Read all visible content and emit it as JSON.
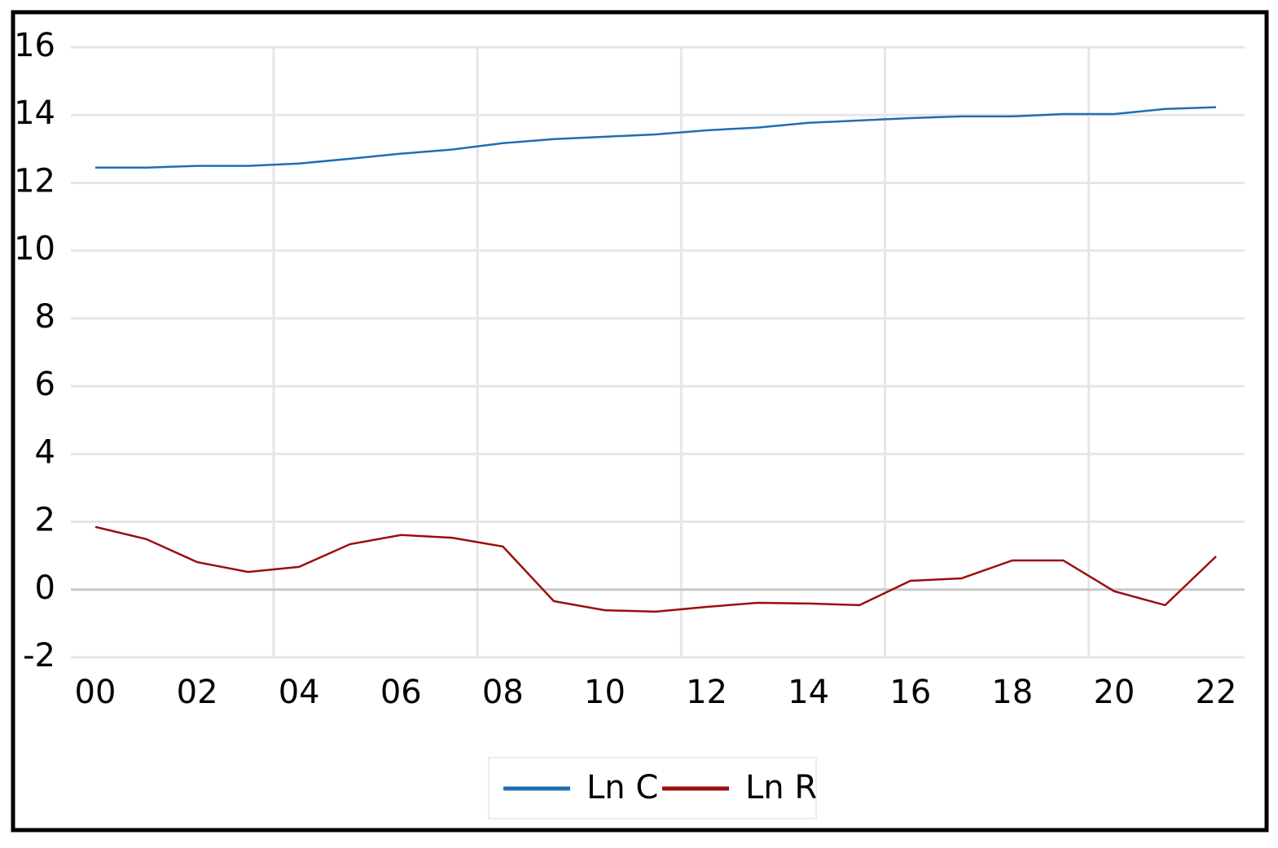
{
  "chart_data": {
    "type": "line",
    "categories": [
      "00",
      null,
      "02",
      null,
      "04",
      null,
      "06",
      null,
      "08",
      null,
      "10",
      null,
      "12",
      null,
      "14",
      null,
      "16",
      null,
      "18",
      null,
      "20",
      null,
      "22"
    ],
    "series": [
      {
        "name": "Ln C",
        "color": "#1f6eb5",
        "values": [
          12.45,
          12.45,
          12.5,
          12.5,
          12.57,
          12.71,
          12.86,
          12.98,
          13.17,
          13.29,
          13.36,
          13.43,
          13.55,
          13.63,
          13.77,
          13.84,
          13.91,
          13.96,
          13.96,
          14.03,
          14.03,
          14.18,
          14.23
        ]
      },
      {
        "name": "Ln R",
        "color": "#9b0d0d",
        "values": [
          1.85,
          1.49,
          0.81,
          0.52,
          0.67,
          1.34,
          1.61,
          1.53,
          1.27,
          -0.34,
          -0.61,
          -0.65,
          -0.51,
          -0.39,
          -0.41,
          -0.46,
          0.26,
          0.33,
          0.86,
          0.86,
          -0.05,
          -0.46,
          0.98
        ]
      }
    ],
    "ylim": [
      -2,
      16
    ],
    "yticks": [
      -2,
      0,
      2,
      4,
      6,
      8,
      10,
      12,
      14,
      16
    ],
    "grid": true,
    "legend": "bottom"
  }
}
